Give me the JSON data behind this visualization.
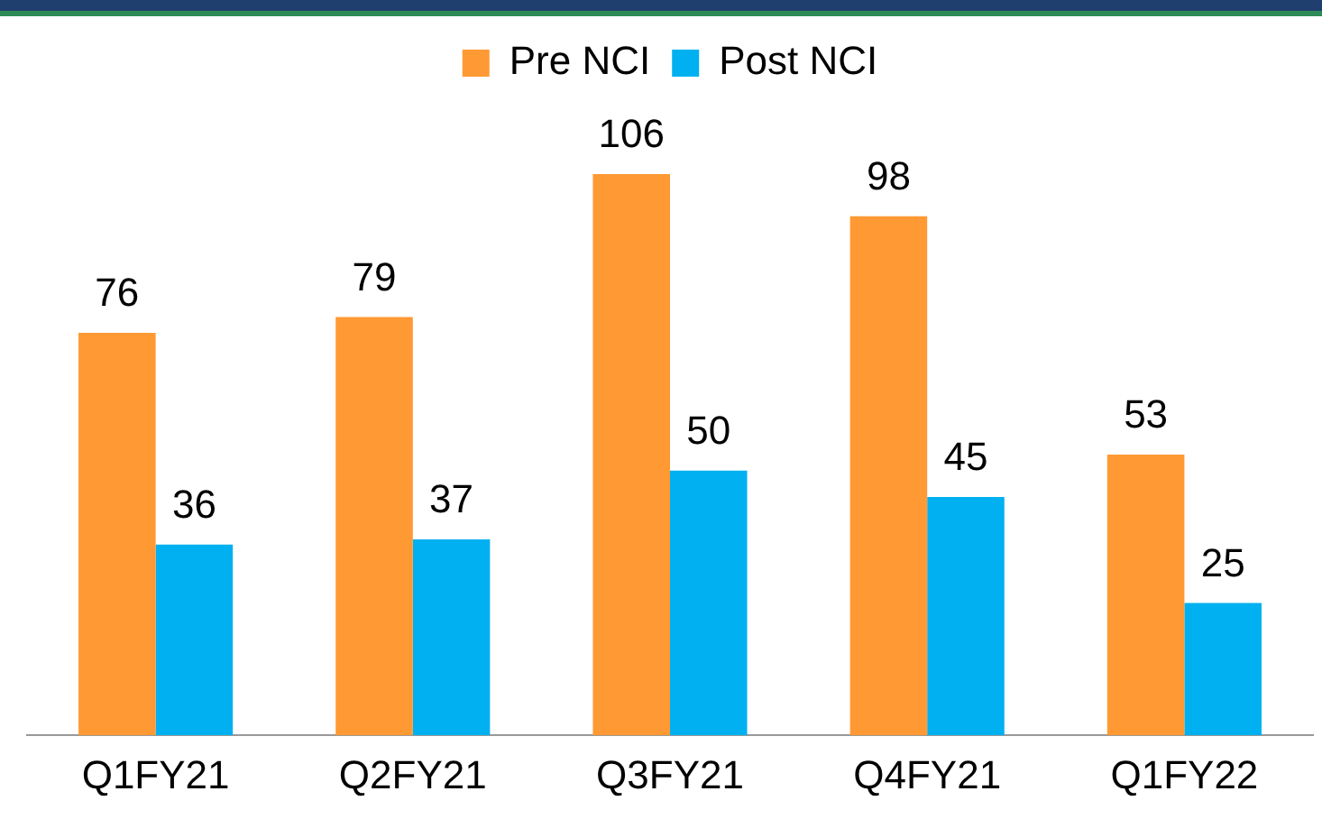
{
  "chart_data": {
    "type": "bar",
    "categories": [
      "Q1FY21",
      "Q2FY21",
      "Q3FY21",
      "Q4FY21",
      "Q1FY22"
    ],
    "series": [
      {
        "name": "Pre NCI",
        "color": "#ff9933",
        "values": [
          76,
          79,
          106,
          98,
          53
        ]
      },
      {
        "name": "Post NCI",
        "color": "#00b0f0",
        "values": [
          36,
          37,
          50,
          45,
          25
        ]
      }
    ],
    "data_labels": true,
    "legend": "top",
    "grid": false,
    "tick_labels": "x"
  }
}
